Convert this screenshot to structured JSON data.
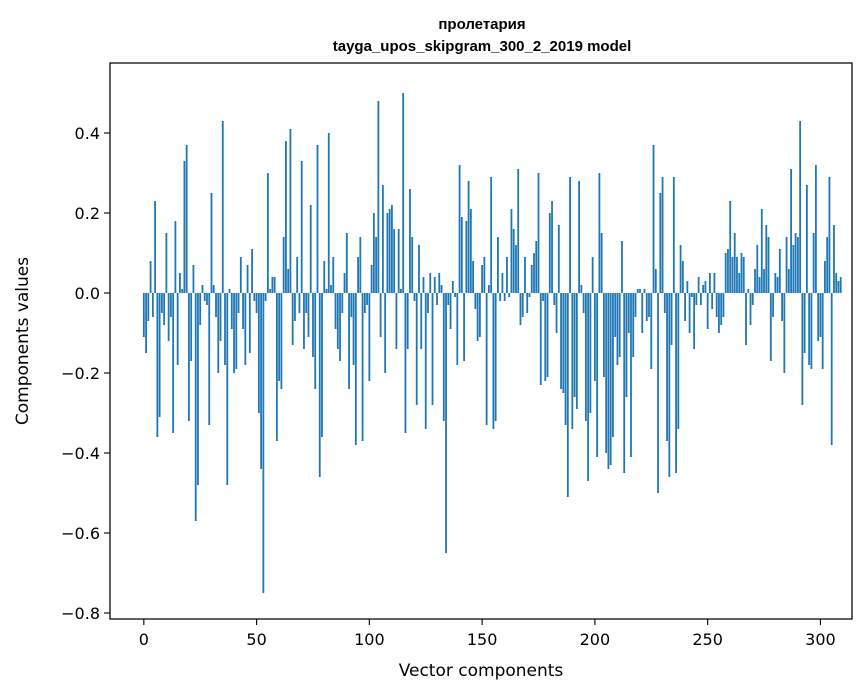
{
  "chart_data": {
    "type": "bar",
    "title": [
      "пролетария",
      "tayga_upos_skipgram_300_2_2019 model"
    ],
    "xlabel": "Vector components",
    "ylabel": "Components values",
    "xlim": [
      -15,
      314
    ],
    "ylim": [
      -0.815,
      0.575
    ],
    "xticks": [
      0,
      50,
      100,
      150,
      200,
      250,
      300
    ],
    "yticks": [
      -0.8,
      -0.6,
      -0.4,
      -0.2,
      0.0,
      0.2,
      0.4
    ],
    "ytick_labels": [
      "−0.8",
      "−0.6",
      "−0.4",
      "−0.2",
      "0.0",
      "0.2",
      "0.4"
    ],
    "bar_color": "#1f77b4",
    "grid": false,
    "series": [
      {
        "name": "пролетария",
        "values": [
          -0.11,
          -0.15,
          -0.07,
          0.08,
          -0.06,
          0.23,
          -0.36,
          -0.31,
          -0.05,
          -0.08,
          0.15,
          -0.12,
          -0.06,
          -0.35,
          0.18,
          -0.18,
          0.05,
          0.01,
          0.33,
          0.37,
          -0.32,
          -0.17,
          0.07,
          -0.57,
          -0.48,
          -0.08,
          0.02,
          -0.02,
          -0.03,
          -0.33,
          0.25,
          0.02,
          -0.06,
          -0.2,
          -0.12,
          0.43,
          -0.18,
          -0.48,
          0.01,
          -0.09,
          -0.2,
          -0.19,
          -0.05,
          0.09,
          -0.09,
          -0.18,
          0.07,
          -0.15,
          0.11,
          -0.02,
          -0.05,
          -0.3,
          -0.44,
          -0.75,
          -0.02,
          0.3,
          0.01,
          0.04,
          0.04,
          -0.37,
          -0.22,
          -0.24,
          0.14,
          0.38,
          0.06,
          0.41,
          -0.13,
          -0.07,
          0.09,
          -0.05,
          0.33,
          -0.14,
          -0.05,
          -0.11,
          0.22,
          -0.16,
          -0.24,
          0.37,
          -0.46,
          -0.36,
          0.08,
          0.01,
          0.4,
          0.02,
          0.09,
          -0.09,
          -0.14,
          -0.17,
          -0.05,
          0.05,
          0.15,
          -0.24,
          -0.06,
          -0.18,
          -0.38,
          0.09,
          0.14,
          -0.37,
          -0.05,
          -0.03,
          -0.22,
          0.07,
          0.2,
          0.14,
          0.48,
          -0.11,
          0.27,
          -0.2,
          0.2,
          0.21,
          0.22,
          0.16,
          -0.14,
          0.16,
          0.01,
          0.5,
          -0.35,
          -0.14,
          0.26,
          0.14,
          -0.02,
          -0.28,
          0.12,
          -0.14,
          0.04,
          -0.34,
          -0.05,
          0.05,
          -0.28,
          0.04,
          -0.03,
          0.05,
          0.02,
          -0.32,
          -0.65,
          -0.03,
          -0.09,
          0.03,
          -0.01,
          -0.18,
          0.32,
          0.19,
          -0.17,
          0.18,
          0.28,
          0.21,
          0.08,
          -0.04,
          -0.12,
          -0.11,
          0.07,
          0.09,
          -0.33,
          0.02,
          0.29,
          -0.34,
          -0.32,
          0.14,
          -0.02,
          0.05,
          -0.02,
          0.09,
          -0.01,
          0.21,
          0.16,
          0.12,
          0.31,
          -0.08,
          -0.06,
          0.09,
          -0.05,
          -0.01,
          0.07,
          0.1,
          0.13,
          0.3,
          -0.23,
          -0.02,
          -0.22,
          -0.21,
          0.2,
          0.23,
          -0.03,
          -0.1,
          0.17,
          -0.24,
          -0.25,
          -0.33,
          -0.51,
          0.29,
          -0.34,
          -0.26,
          -0.29,
          0.28,
          0.02,
          -0.05,
          -0.32,
          -0.47,
          -0.3,
          0.09,
          -0.22,
          -0.41,
          0.3,
          0.15,
          -0.21,
          -0.4,
          -0.44,
          -0.43,
          -0.36,
          -0.11,
          -0.18,
          -0.16,
          0.13,
          -0.45,
          -0.26,
          -0.1,
          -0.41,
          -0.16,
          -0.06,
          0.01,
          0.01,
          -0.1,
          0.01,
          -0.07,
          -0.06,
          -0.19,
          0.37,
          0.06,
          -0.5,
          0.25,
          0.29,
          -0.05,
          -0.37,
          -0.46,
          -0.13,
          0.29,
          -0.45,
          -0.34,
          0.12,
          0.08,
          -0.07,
          0.03,
          -0.1,
          -0.01,
          -0.14,
          -0.03,
          0.04,
          -0.03,
          0.02,
          0.03,
          -0.09,
          0.05,
          -0.04,
          0.05,
          -0.06,
          -0.1,
          -0.08,
          -0.06,
          0.1,
          0.11,
          0.23,
          0.09,
          0.15,
          0.09,
          0.05,
          0.1,
          0.09,
          -0.13,
          0.01,
          -0.08,
          -0.03,
          0.06,
          0.12,
          0.04,
          0.21,
          0.06,
          0.17,
          0.14,
          -0.17,
          -0.06,
          0.05,
          0.04,
          0.11,
          -0.07,
          -0.2,
          0.14,
          0.06,
          0.31,
          0.12,
          0.15,
          0.14,
          0.43,
          -0.28,
          -0.15,
          0.27,
          -0.18,
          -0.19,
          0.15,
          0.32,
          -0.12,
          -0.11,
          -0.19,
          0.08,
          0.14,
          0.29,
          -0.38,
          0.17,
          0.05,
          0.03,
          0.04
        ]
      }
    ]
  }
}
